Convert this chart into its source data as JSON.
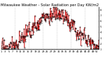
{
  "title": "Milwaukee Weather - Solar Radiation per Day KW/m2",
  "background_color": "#ffffff",
  "line_color": "#cc0000",
  "marker_color": "#000000",
  "ylim": [
    1.0,
    8.5
  ],
  "ytick_values": [
    8,
    7,
    6,
    5,
    4,
    3,
    2,
    1
  ],
  "ytick_labels": [
    "8.",
    "7.",
    "6.",
    "5.",
    "4.",
    "3.",
    "2.",
    "1."
  ],
  "grid_color": "#999999",
  "title_fontsize": 3.8,
  "tick_fontsize": 2.5,
  "num_points": 365,
  "vline_interval": 52,
  "seed": 17
}
